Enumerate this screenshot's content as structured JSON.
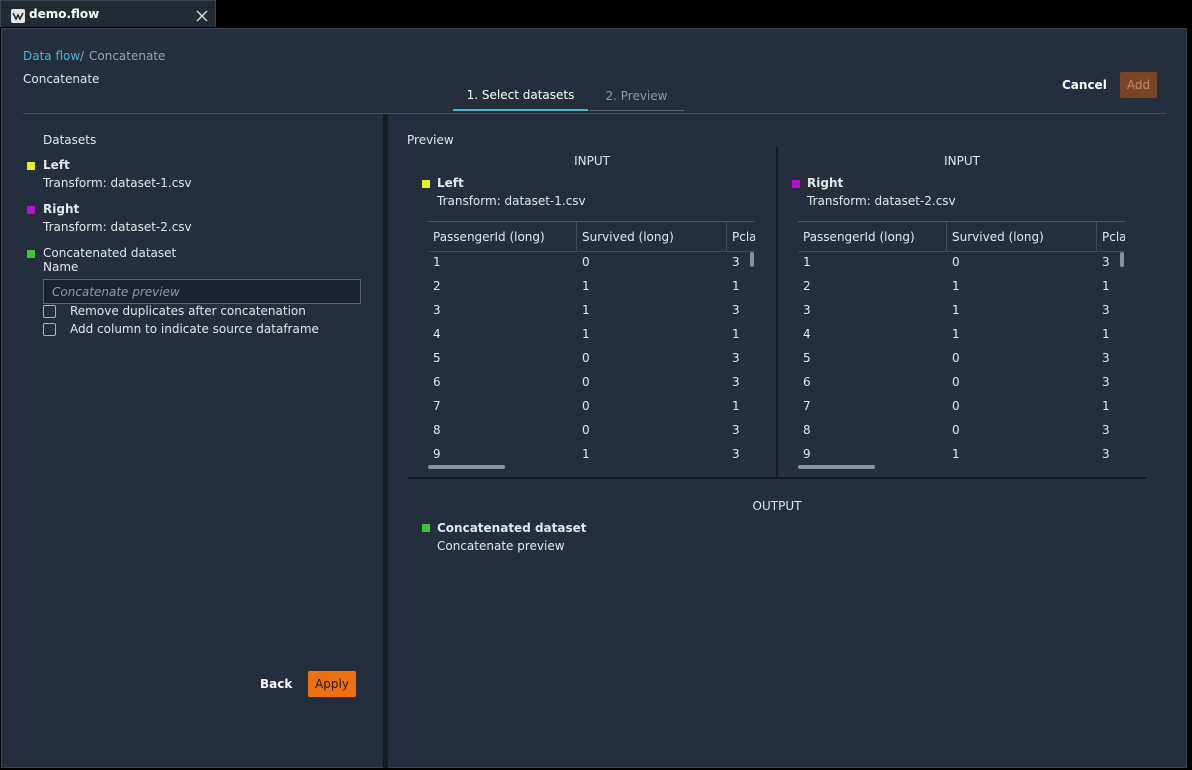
{
  "tab": {
    "title": "demo.flow"
  },
  "breadcrumb": {
    "root": "Data flow",
    "current": "Concatenate"
  },
  "page_title": "Concatenate",
  "steps": [
    "1. Select datasets",
    "2. Preview"
  ],
  "actions": {
    "cancel": "Cancel",
    "add": "Add"
  },
  "left_panel": {
    "heading": "Datasets",
    "datasets": [
      {
        "name": "Left",
        "source": "Transform: dataset-1.csv",
        "color": "#e8f01e"
      },
      {
        "name": "Right",
        "source": "Transform: dataset-2.csv",
        "color": "#b412c8"
      }
    ],
    "output": {
      "name": "Concatenated dataset",
      "field_label": "Name",
      "placeholder": "Concatenate preview",
      "color": "#3cc43c"
    },
    "options": [
      "Remove duplicates after concatenation",
      "Add column to indicate source dataframe"
    ],
    "buttons": {
      "back": "Back",
      "apply": "Apply"
    }
  },
  "preview": {
    "heading": "Preview",
    "inputs": [
      {
        "label": "INPUT",
        "name": "Left",
        "source": "Transform: dataset-1.csv",
        "color": "#e8f01e",
        "columns": [
          "PassengerId (long)",
          "Survived (long)",
          "Pcla"
        ],
        "rows": [
          [
            1,
            0,
            3
          ],
          [
            2,
            1,
            1
          ],
          [
            3,
            1,
            3
          ],
          [
            4,
            1,
            1
          ],
          [
            5,
            0,
            3
          ],
          [
            6,
            0,
            3
          ],
          [
            7,
            0,
            1
          ],
          [
            8,
            0,
            3
          ],
          [
            9,
            1,
            3
          ]
        ]
      },
      {
        "label": "INPUT",
        "name": "Right",
        "source": "Transform: dataset-2.csv",
        "color": "#b412c8",
        "columns": [
          "PassengerId (long)",
          "Survived (long)",
          "Pcla"
        ],
        "rows": [
          [
            1,
            0,
            3
          ],
          [
            2,
            1,
            1
          ],
          [
            3,
            1,
            3
          ],
          [
            4,
            1,
            1
          ],
          [
            5,
            0,
            3
          ],
          [
            6,
            0,
            3
          ],
          [
            7,
            0,
            1
          ],
          [
            8,
            0,
            3
          ],
          [
            9,
            1,
            3
          ]
        ]
      }
    ],
    "output": {
      "label": "OUTPUT",
      "name": "Concatenated dataset",
      "source": "Concatenate preview",
      "color": "#3cc43c"
    }
  }
}
